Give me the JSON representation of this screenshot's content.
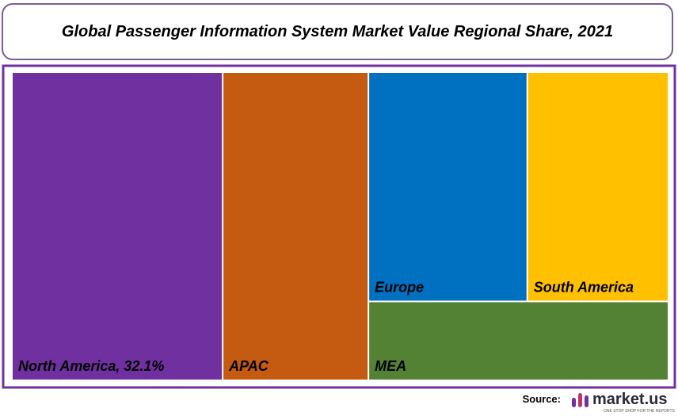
{
  "chart_data": {
    "type": "treemap",
    "title": "Global Passenger Information System Market Value Regional Share, 2021",
    "categories": [
      "North America, 32.1%",
      "APAC",
      "Europe",
      "South America",
      "MEA"
    ],
    "values": [
      32.1,
      22.2,
      18.0,
      16.0,
      11.7
    ],
    "colors": [
      "#7030a0",
      "#c55a11",
      "#0070c0",
      "#ffc000",
      "#548235"
    ]
  },
  "footer": {
    "source_label": "Source:",
    "brand": "market.us",
    "tagline": "ONE STOP SHOP FOR THE REPORTS"
  }
}
